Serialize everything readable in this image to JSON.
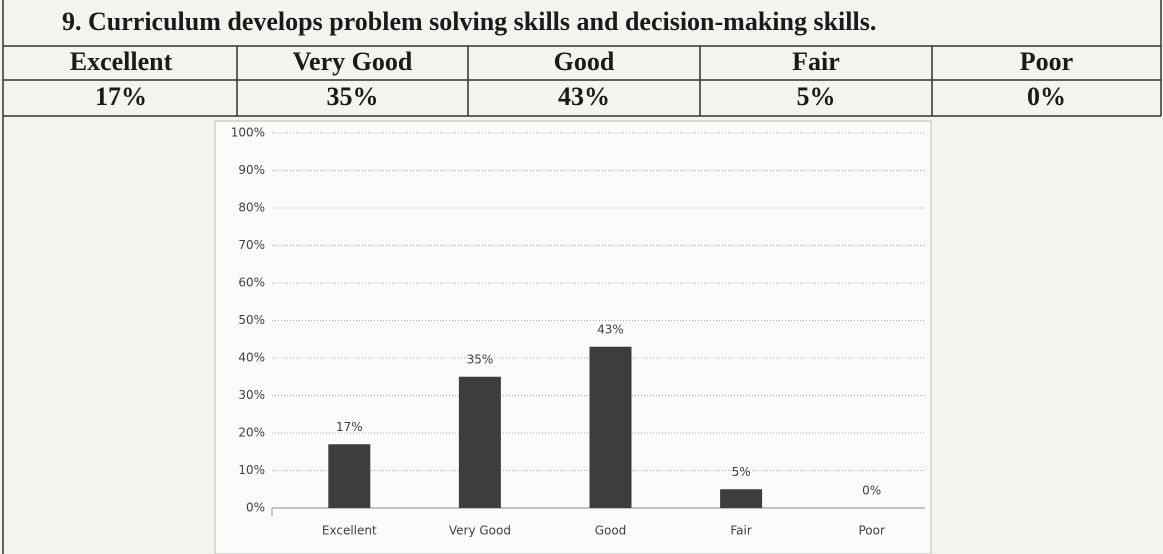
{
  "title": "9.  Curriculum develops problem solving skills and decision-making skills.",
  "table": {
    "header": [
      "Excellent",
      "Very Good",
      "Good",
      "Fair",
      "Poor"
    ],
    "rows": [
      [
        "17%",
        "35%",
        "43%",
        "5%",
        "0%"
      ]
    ]
  },
  "chart_data": {
    "type": "bar",
    "categories": [
      "Excellent",
      "Very Good",
      "Good",
      "Fair",
      "Poor"
    ],
    "values": [
      17,
      35,
      43,
      5,
      0
    ],
    "value_labels": [
      "17%",
      "35%",
      "43%",
      "5%",
      "0%"
    ],
    "color": "#3d3d3d",
    "ylim": [
      0,
      100
    ],
    "yticks": [
      {
        "value": 0,
        "label": "0%"
      },
      {
        "value": 10,
        "label": "10%"
      },
      {
        "value": 20,
        "label": "20%"
      },
      {
        "value": 30,
        "label": "30%"
      },
      {
        "value": 40,
        "label": "40%"
      },
      {
        "value": 50,
        "label": "50%"
      },
      {
        "value": 60,
        "label": "60%"
      },
      {
        "value": 70,
        "label": "70%"
      },
      {
        "value": 80,
        "label": "80%"
      },
      {
        "value": 90,
        "label": "90%"
      },
      {
        "value": 100,
        "label": "100%"
      }
    ],
    "grid": true
  }
}
